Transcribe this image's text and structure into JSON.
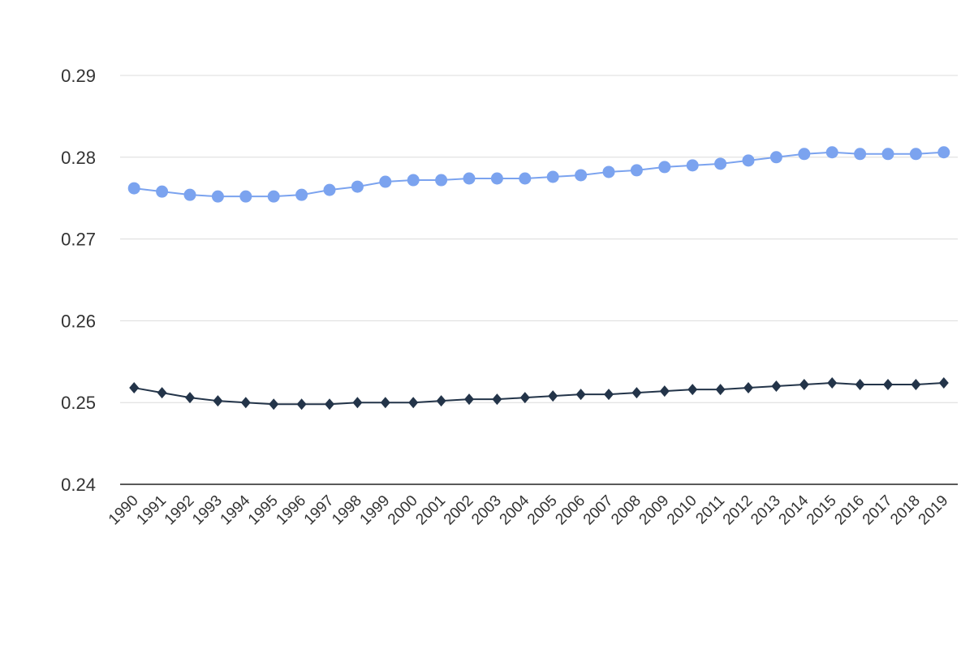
{
  "chart_data": {
    "type": "line",
    "categories": [
      "1990",
      "1991",
      "1992",
      "1993",
      "1994",
      "1995",
      "1996",
      "1997",
      "1998",
      "1999",
      "2000",
      "2001",
      "2002",
      "2003",
      "2004",
      "2005",
      "2006",
      "2007",
      "2008",
      "2009",
      "2010",
      "2011",
      "2012",
      "2013",
      "2014",
      "2015",
      "2016",
      "2017",
      "2018",
      "2019"
    ],
    "series": [
      {
        "color": "#7ba3ef",
        "marker": "circle",
        "values": [
          0.2762,
          0.2758,
          0.2754,
          0.2752,
          0.2752,
          0.2752,
          0.2754,
          0.276,
          0.2764,
          0.277,
          0.2772,
          0.2772,
          0.2774,
          0.2774,
          0.2774,
          0.2776,
          0.2778,
          0.2782,
          0.2784,
          0.2788,
          0.279,
          0.2792,
          0.2796,
          0.28,
          0.2804,
          0.2806,
          0.2804,
          0.2804,
          0.2804,
          0.2806
        ]
      },
      {
        "color": "#233449",
        "marker": "diamond",
        "values": [
          0.2518,
          0.2512,
          0.2506,
          0.2502,
          0.25,
          0.2498,
          0.2498,
          0.2498,
          0.25,
          0.25,
          0.25,
          0.2502,
          0.2504,
          0.2504,
          0.2506,
          0.2508,
          0.251,
          0.251,
          0.2512,
          0.2514,
          0.2516,
          0.2516,
          0.2518,
          0.252,
          0.2522,
          0.2524,
          0.2522,
          0.2522,
          0.2522,
          0.2524
        ]
      }
    ],
    "ylim": [
      0.24,
      0.29
    ],
    "yticks": [
      0.24,
      0.25,
      0.26,
      0.27,
      0.28,
      0.29
    ],
    "grid": true
  }
}
